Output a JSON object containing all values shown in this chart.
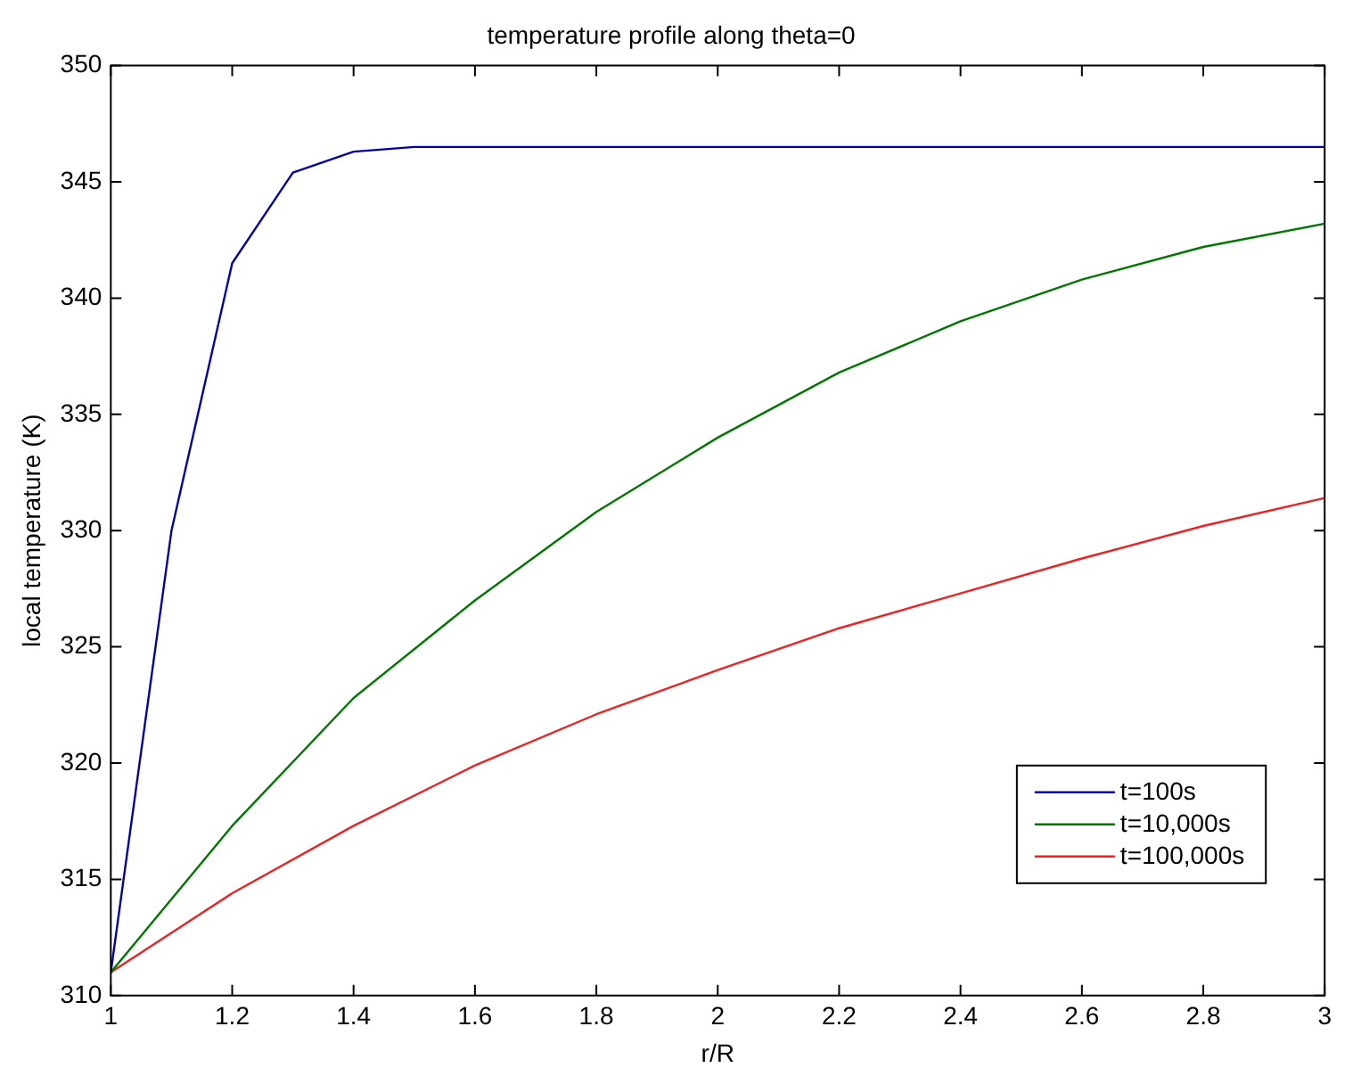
{
  "chart_data": {
    "type": "line",
    "title": "temperature profile along theta=0",
    "xlabel": "r/R",
    "ylabel": "local temperature (K)",
    "xlim": [
      1,
      3
    ],
    "xticks": [
      1,
      1.2,
      1.4,
      1.6,
      1.8,
      2,
      2.2,
      2.4,
      2.6,
      2.8,
      3
    ],
    "ylim": [
      310,
      350
    ],
    "yticks": [
      310,
      315,
      320,
      325,
      330,
      335,
      340,
      345,
      350
    ],
    "grid": false,
    "legend": "bottom right",
    "marker": "none",
    "line_style": "solid",
    "series": [
      {
        "name": "t=100s",
        "color": "#0000aa",
        "x": [
          1,
          1.1,
          1.2,
          1.3,
          1.4,
          1.5,
          3
        ],
        "values": [
          311,
          330,
          341.5,
          345.4,
          346.3,
          346.5,
          346.5
        ]
      },
      {
        "name": "t=10,000s",
        "color": "#007700",
        "x": [
          1,
          1.2,
          1.4,
          1.6,
          1.8,
          2,
          2.2,
          2.4,
          2.6,
          2.8,
          3
        ],
        "values": [
          311,
          317.3,
          322.8,
          327,
          330.8,
          334,
          336.8,
          339,
          340.8,
          342.2,
          343.2
        ]
      },
      {
        "name": "t=100,000s",
        "color": "#ee2222",
        "x": [
          1,
          1.2,
          1.4,
          1.6,
          1.8,
          2,
          2.2,
          2.4,
          2.6,
          2.8,
          3
        ],
        "values": [
          311,
          314.4,
          317.3,
          319.9,
          322.1,
          324,
          325.8,
          327.3,
          328.8,
          330.2,
          331.4
        ]
      }
    ]
  }
}
